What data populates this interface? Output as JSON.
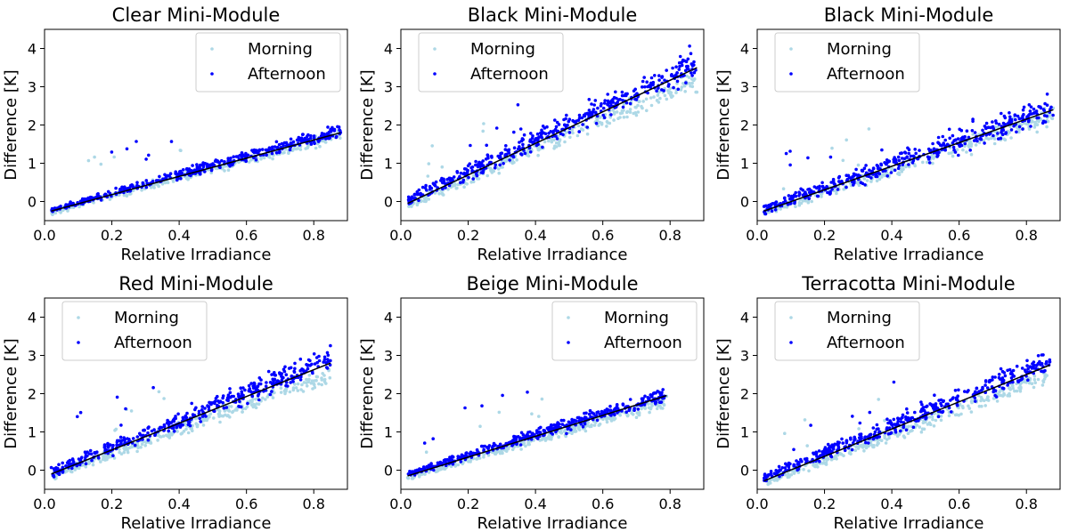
{
  "colors": {
    "morning": "#add8e6",
    "afternoon": "#0000ff",
    "fit": "#000000"
  },
  "chart_data": [
    {
      "type": "scatter",
      "title": "Clear Mini-Module",
      "xlabel": "Relative Irradiance",
      "ylabel": "Difference [K]",
      "xlim": [
        0.0,
        0.9
      ],
      "ylim": [
        -0.5,
        4.5
      ],
      "xticks": [
        "0.0",
        "0.2",
        "0.4",
        "0.6",
        "0.8"
      ],
      "yticks": [
        "0",
        "1",
        "2",
        "3",
        "4"
      ],
      "grid": false,
      "legend_position": "top-right",
      "series": [
        {
          "name": "Morning",
          "x_range": [
            0.02,
            0.88
          ],
          "fit_line": [
            [
              0.02,
              -0.28
            ],
            [
              0.88,
              1.75
            ]
          ],
          "spread": 0.15
        },
        {
          "name": "Afternoon",
          "x_range": [
            0.02,
            0.88
          ],
          "fit_line": [
            [
              0.02,
              -0.22
            ],
            [
              0.88,
              1.85
            ]
          ],
          "spread": 0.16
        }
      ],
      "fit": [
        [
          0.02,
          -0.25
        ],
        [
          0.88,
          1.8
        ]
      ]
    },
    {
      "type": "scatter",
      "title": "Black Mini-Module",
      "xlabel": "Relative Irradiance",
      "ylabel": "Difference [K]",
      "xlim": [
        0.0,
        0.9
      ],
      "ylim": [
        -0.5,
        4.5
      ],
      "xticks": [
        "0.0",
        "0.2",
        "0.4",
        "0.6",
        "0.8"
      ],
      "yticks": [
        "0",
        "1",
        "2",
        "3",
        "4"
      ],
      "grid": false,
      "legend_position": "top-left",
      "series": [
        {
          "name": "Morning",
          "x_range": [
            0.02,
            0.88
          ],
          "fit_line": [
            [
              0.02,
              -0.1
            ],
            [
              0.88,
              3.2
            ]
          ],
          "spread": 0.25
        },
        {
          "name": "Afternoon",
          "x_range": [
            0.02,
            0.88
          ],
          "fit_line": [
            [
              0.02,
              0.05
            ],
            [
              0.88,
              3.6
            ]
          ],
          "spread": 0.35
        }
      ],
      "fit": [
        [
          0.02,
          -0.05
        ],
        [
          0.88,
          3.5
        ]
      ]
    },
    {
      "type": "scatter",
      "title": "Black Mini-Module",
      "xlabel": "Relative Irradiance",
      "ylabel": "Difference [K]",
      "xlim": [
        0.0,
        0.9
      ],
      "ylim": [
        -0.5,
        4.5
      ],
      "xticks": [
        "0.0",
        "0.2",
        "0.4",
        "0.6",
        "0.8"
      ],
      "yticks": [
        "0",
        "1",
        "2",
        "3",
        "4"
      ],
      "grid": false,
      "legend_position": "top-left",
      "series": [
        {
          "name": "Morning",
          "x_range": [
            0.02,
            0.88
          ],
          "fit_line": [
            [
              0.02,
              -0.3
            ],
            [
              0.88,
              2.25
            ]
          ],
          "spread": 0.25
        },
        {
          "name": "Afternoon",
          "x_range": [
            0.02,
            0.88
          ],
          "fit_line": [
            [
              0.02,
              -0.2
            ],
            [
              0.88,
              2.45
            ]
          ],
          "spread": 0.33
        }
      ],
      "fit": [
        [
          0.02,
          -0.25
        ],
        [
          0.88,
          2.4
        ]
      ]
    },
    {
      "type": "scatter",
      "title": "Red Mini-Module",
      "xlabel": "Relative Irradiance",
      "ylabel": "Difference [K]",
      "xlim": [
        0.0,
        0.9
      ],
      "ylim": [
        -0.5,
        4.5
      ],
      "xticks": [
        "0.0",
        "0.2",
        "0.4",
        "0.6",
        "0.8"
      ],
      "yticks": [
        "0",
        "1",
        "2",
        "3",
        "4"
      ],
      "grid": false,
      "legend_position": "top-left",
      "series": [
        {
          "name": "Morning",
          "x_range": [
            0.02,
            0.85
          ],
          "fit_line": [
            [
              0.02,
              -0.15
            ],
            [
              0.85,
              2.5
            ]
          ],
          "spread": 0.22
        },
        {
          "name": "Afternoon",
          "x_range": [
            0.02,
            0.85
          ],
          "fit_line": [
            [
              0.02,
              -0.05
            ],
            [
              0.85,
              2.9
            ]
          ],
          "spread": 0.3
        }
      ],
      "fit": [
        [
          0.02,
          -0.1
        ],
        [
          0.85,
          2.8
        ]
      ]
    },
    {
      "type": "scatter",
      "title": "Beige Mini-Module",
      "xlabel": "Relative Irradiance",
      "ylabel": "Difference [K]",
      "xlim": [
        0.0,
        0.9
      ],
      "ylim": [
        -0.5,
        4.5
      ],
      "xticks": [
        "0.0",
        "0.2",
        "0.4",
        "0.6",
        "0.8"
      ],
      "yticks": [
        "0",
        "1",
        "2",
        "3",
        "4"
      ],
      "grid": false,
      "legend_position": "top-right",
      "series": [
        {
          "name": "Morning",
          "x_range": [
            0.02,
            0.79
          ],
          "fit_line": [
            [
              0.02,
              -0.2
            ],
            [
              0.79,
              1.8
            ]
          ],
          "spread": 0.15
        },
        {
          "name": "Afternoon",
          "x_range": [
            0.02,
            0.79
          ],
          "fit_line": [
            [
              0.02,
              -0.1
            ],
            [
              0.79,
              2.0
            ]
          ],
          "spread": 0.18
        }
      ],
      "fit": [
        [
          0.02,
          -0.15
        ],
        [
          0.79,
          1.95
        ]
      ]
    },
    {
      "type": "scatter",
      "title": "Terracotta Mini-Module",
      "xlabel": "Relative Irradiance",
      "ylabel": "Difference [K]",
      "xlim": [
        0.0,
        0.9
      ],
      "ylim": [
        -0.5,
        4.5
      ],
      "xticks": [
        "0.0",
        "0.2",
        "0.4",
        "0.6",
        "0.8"
      ],
      "yticks": [
        "0",
        "1",
        "2",
        "3",
        "4"
      ],
      "grid": false,
      "legend_position": "top-left",
      "series": [
        {
          "name": "Morning",
          "x_range": [
            0.02,
            0.87
          ],
          "fit_line": [
            [
              0.02,
              -0.35
            ],
            [
              0.87,
              2.5
            ]
          ],
          "spread": 0.22
        },
        {
          "name": "Afternoon",
          "x_range": [
            0.02,
            0.87
          ],
          "fit_line": [
            [
              0.02,
              -0.2
            ],
            [
              0.87,
              2.85
            ]
          ],
          "spread": 0.3
        }
      ],
      "fit": [
        [
          0.02,
          -0.28
        ],
        [
          0.87,
          2.75
        ]
      ]
    }
  ]
}
